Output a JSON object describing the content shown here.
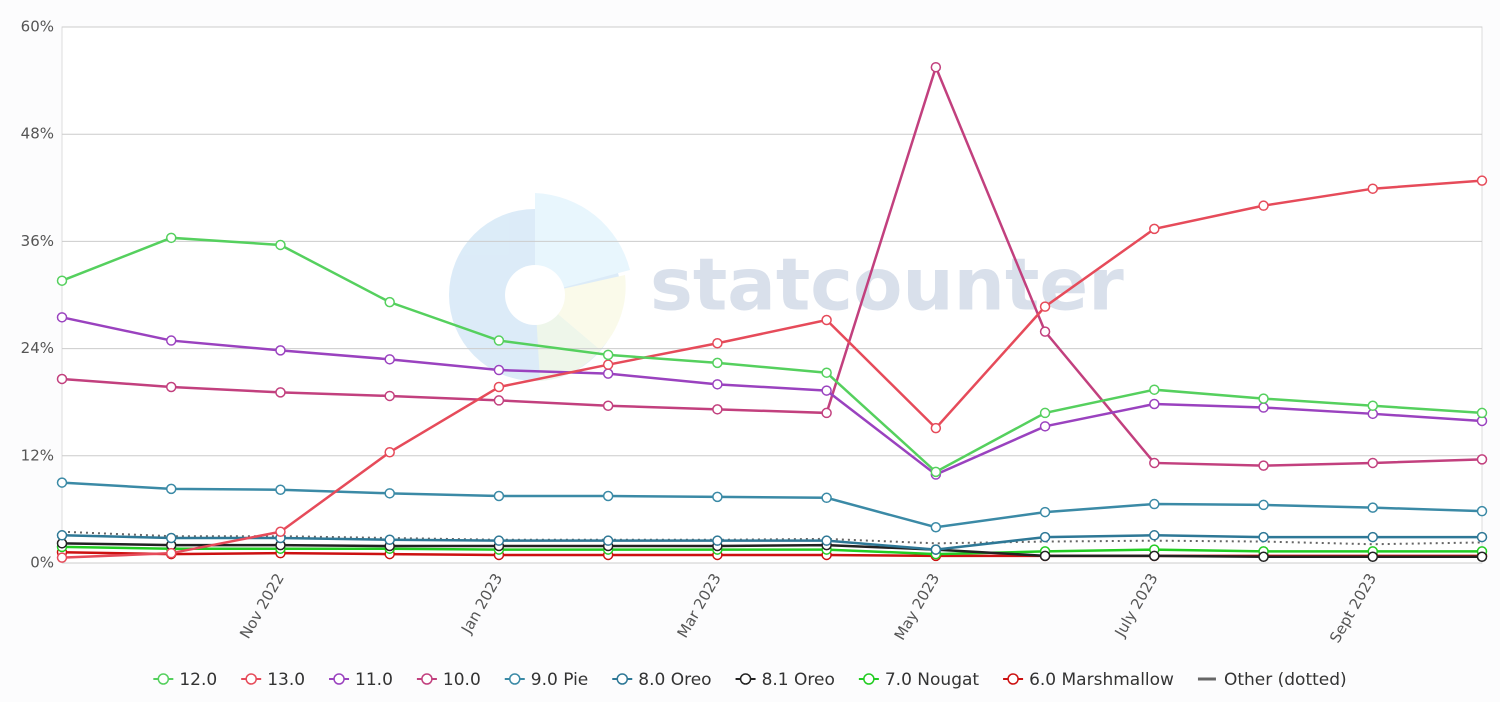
{
  "chart_data": {
    "type": "line",
    "watermark": "statcounter",
    "categories": [
      null,
      null,
      "Nov 2022",
      null,
      "Jan 2023",
      null,
      "Mar 2023",
      null,
      "May 2023",
      null,
      "July 2023",
      null,
      "Sept 2023",
      null
    ],
    "ylim": [
      0,
      60
    ],
    "yticks": [
      {
        "value": 0,
        "label": "0%"
      },
      {
        "value": 12,
        "label": "12%"
      },
      {
        "value": 24,
        "label": "24%"
      },
      {
        "value": 36,
        "label": "36%"
      },
      {
        "value": 48,
        "label": "48%"
      },
      {
        "value": 60,
        "label": "60%"
      }
    ],
    "grid": true,
    "legend": "bottom",
    "series": [
      {
        "name": "12.0",
        "color": "#55d05e",
        "values": [
          31.6,
          36.4,
          35.6,
          29.2,
          24.9,
          23.3,
          22.4,
          21.3,
          10.2,
          16.8,
          19.4,
          18.4,
          17.6,
          16.8
        ]
      },
      {
        "name": "13.0",
        "color": "#e64b5a",
        "values": [
          0.6,
          1.1,
          3.5,
          12.4,
          19.7,
          22.2,
          24.6,
          27.2,
          15.1,
          28.7,
          37.4,
          40.0,
          41.9,
          42.8
        ]
      },
      {
        "name": "11.0",
        "color": "#9a42bf",
        "values": [
          27.5,
          24.9,
          23.8,
          22.8,
          21.6,
          21.2,
          20.0,
          19.3,
          9.9,
          15.3,
          17.8,
          17.4,
          16.7,
          15.9
        ]
      },
      {
        "name": "10.0",
        "color": "#c2407e",
        "values": [
          20.6,
          19.7,
          19.1,
          18.7,
          18.2,
          17.6,
          17.2,
          16.8,
          55.5,
          25.9,
          11.2,
          10.9,
          11.2,
          11.6
        ]
      },
      {
        "name": "9.0 Pie",
        "color": "#3b8aa6",
        "values": [
          9.0,
          8.3,
          8.2,
          7.8,
          7.5,
          7.5,
          7.4,
          7.3,
          4.0,
          5.7,
          6.6,
          6.5,
          6.2,
          5.8
        ]
      },
      {
        "name": "8.0 Oreo",
        "color": "#2e7896",
        "values": [
          3.1,
          2.8,
          2.8,
          2.6,
          2.5,
          2.5,
          2.5,
          2.5,
          1.5,
          2.9,
          3.1,
          2.9,
          2.9,
          2.9
        ]
      },
      {
        "name": "8.1 Oreo",
        "color": "#222222",
        "values": [
          2.2,
          2.0,
          2.0,
          1.9,
          1.9,
          1.9,
          1.9,
          2.0,
          1.5,
          0.8,
          0.8,
          0.7,
          0.7,
          0.7
        ]
      },
      {
        "name": "7.0 Nougat",
        "color": "#22cc22",
        "values": [
          1.8,
          1.6,
          1.6,
          1.6,
          1.5,
          1.5,
          1.5,
          1.5,
          1.0,
          1.3,
          1.5,
          1.3,
          1.3,
          1.3
        ]
      },
      {
        "name": "6.0 Marshmallow",
        "color": "#cc1111",
        "values": [
          1.2,
          1.0,
          1.1,
          1.0,
          0.9,
          0.9,
          0.9,
          0.9,
          0.8,
          0.8,
          0.8,
          0.8,
          0.8,
          0.8
        ]
      },
      {
        "name": "Other (dotted)",
        "color": "#666666",
        "line_style": "dotted",
        "markers": false,
        "values": [
          3.5,
          3.0,
          3.0,
          2.8,
          2.6,
          2.6,
          2.6,
          2.7,
          2.2,
          2.4,
          2.5,
          2.4,
          2.1,
          2.3
        ]
      }
    ]
  }
}
